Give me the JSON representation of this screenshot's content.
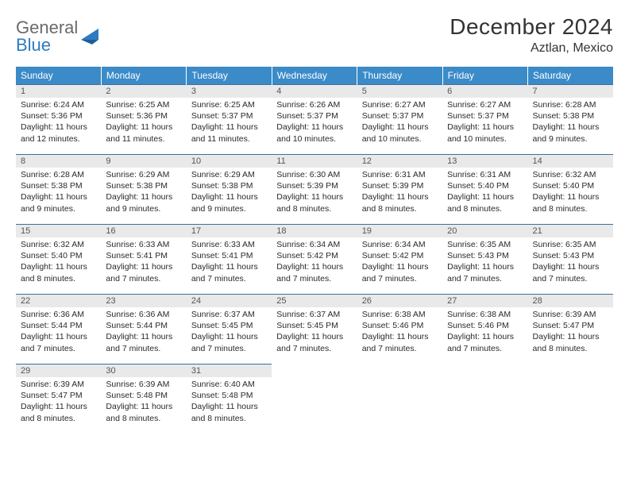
{
  "brand": {
    "part1": "General",
    "part2": "Blue"
  },
  "title": "December 2024",
  "location": "Aztlan, Mexico",
  "colors": {
    "header_bg": "#3b8bc8",
    "header_text": "#ffffff",
    "row_border": "#3b6fa0",
    "daynum_bg": "#e9e9e9",
    "logo_gray": "#6a6a6a",
    "logo_blue": "#2f7bbf"
  },
  "weekdays": [
    "Sunday",
    "Monday",
    "Tuesday",
    "Wednesday",
    "Thursday",
    "Friday",
    "Saturday"
  ],
  "weeks": [
    [
      {
        "n": "1",
        "sunrise": "Sunrise: 6:24 AM",
        "sunset": "Sunset: 5:36 PM",
        "day1": "Daylight: 11 hours",
        "day2": "and 12 minutes."
      },
      {
        "n": "2",
        "sunrise": "Sunrise: 6:25 AM",
        "sunset": "Sunset: 5:36 PM",
        "day1": "Daylight: 11 hours",
        "day2": "and 11 minutes."
      },
      {
        "n": "3",
        "sunrise": "Sunrise: 6:25 AM",
        "sunset": "Sunset: 5:37 PM",
        "day1": "Daylight: 11 hours",
        "day2": "and 11 minutes."
      },
      {
        "n": "4",
        "sunrise": "Sunrise: 6:26 AM",
        "sunset": "Sunset: 5:37 PM",
        "day1": "Daylight: 11 hours",
        "day2": "and 10 minutes."
      },
      {
        "n": "5",
        "sunrise": "Sunrise: 6:27 AM",
        "sunset": "Sunset: 5:37 PM",
        "day1": "Daylight: 11 hours",
        "day2": "and 10 minutes."
      },
      {
        "n": "6",
        "sunrise": "Sunrise: 6:27 AM",
        "sunset": "Sunset: 5:37 PM",
        "day1": "Daylight: 11 hours",
        "day2": "and 10 minutes."
      },
      {
        "n": "7",
        "sunrise": "Sunrise: 6:28 AM",
        "sunset": "Sunset: 5:38 PM",
        "day1": "Daylight: 11 hours",
        "day2": "and 9 minutes."
      }
    ],
    [
      {
        "n": "8",
        "sunrise": "Sunrise: 6:28 AM",
        "sunset": "Sunset: 5:38 PM",
        "day1": "Daylight: 11 hours",
        "day2": "and 9 minutes."
      },
      {
        "n": "9",
        "sunrise": "Sunrise: 6:29 AM",
        "sunset": "Sunset: 5:38 PM",
        "day1": "Daylight: 11 hours",
        "day2": "and 9 minutes."
      },
      {
        "n": "10",
        "sunrise": "Sunrise: 6:29 AM",
        "sunset": "Sunset: 5:38 PM",
        "day1": "Daylight: 11 hours",
        "day2": "and 9 minutes."
      },
      {
        "n": "11",
        "sunrise": "Sunrise: 6:30 AM",
        "sunset": "Sunset: 5:39 PM",
        "day1": "Daylight: 11 hours",
        "day2": "and 8 minutes."
      },
      {
        "n": "12",
        "sunrise": "Sunrise: 6:31 AM",
        "sunset": "Sunset: 5:39 PM",
        "day1": "Daylight: 11 hours",
        "day2": "and 8 minutes."
      },
      {
        "n": "13",
        "sunrise": "Sunrise: 6:31 AM",
        "sunset": "Sunset: 5:40 PM",
        "day1": "Daylight: 11 hours",
        "day2": "and 8 minutes."
      },
      {
        "n": "14",
        "sunrise": "Sunrise: 6:32 AM",
        "sunset": "Sunset: 5:40 PM",
        "day1": "Daylight: 11 hours",
        "day2": "and 8 minutes."
      }
    ],
    [
      {
        "n": "15",
        "sunrise": "Sunrise: 6:32 AM",
        "sunset": "Sunset: 5:40 PM",
        "day1": "Daylight: 11 hours",
        "day2": "and 8 minutes."
      },
      {
        "n": "16",
        "sunrise": "Sunrise: 6:33 AM",
        "sunset": "Sunset: 5:41 PM",
        "day1": "Daylight: 11 hours",
        "day2": "and 7 minutes."
      },
      {
        "n": "17",
        "sunrise": "Sunrise: 6:33 AM",
        "sunset": "Sunset: 5:41 PM",
        "day1": "Daylight: 11 hours",
        "day2": "and 7 minutes."
      },
      {
        "n": "18",
        "sunrise": "Sunrise: 6:34 AM",
        "sunset": "Sunset: 5:42 PM",
        "day1": "Daylight: 11 hours",
        "day2": "and 7 minutes."
      },
      {
        "n": "19",
        "sunrise": "Sunrise: 6:34 AM",
        "sunset": "Sunset: 5:42 PM",
        "day1": "Daylight: 11 hours",
        "day2": "and 7 minutes."
      },
      {
        "n": "20",
        "sunrise": "Sunrise: 6:35 AM",
        "sunset": "Sunset: 5:43 PM",
        "day1": "Daylight: 11 hours",
        "day2": "and 7 minutes."
      },
      {
        "n": "21",
        "sunrise": "Sunrise: 6:35 AM",
        "sunset": "Sunset: 5:43 PM",
        "day1": "Daylight: 11 hours",
        "day2": "and 7 minutes."
      }
    ],
    [
      {
        "n": "22",
        "sunrise": "Sunrise: 6:36 AM",
        "sunset": "Sunset: 5:44 PM",
        "day1": "Daylight: 11 hours",
        "day2": "and 7 minutes."
      },
      {
        "n": "23",
        "sunrise": "Sunrise: 6:36 AM",
        "sunset": "Sunset: 5:44 PM",
        "day1": "Daylight: 11 hours",
        "day2": "and 7 minutes."
      },
      {
        "n": "24",
        "sunrise": "Sunrise: 6:37 AM",
        "sunset": "Sunset: 5:45 PM",
        "day1": "Daylight: 11 hours",
        "day2": "and 7 minutes."
      },
      {
        "n": "25",
        "sunrise": "Sunrise: 6:37 AM",
        "sunset": "Sunset: 5:45 PM",
        "day1": "Daylight: 11 hours",
        "day2": "and 7 minutes."
      },
      {
        "n": "26",
        "sunrise": "Sunrise: 6:38 AM",
        "sunset": "Sunset: 5:46 PM",
        "day1": "Daylight: 11 hours",
        "day2": "and 7 minutes."
      },
      {
        "n": "27",
        "sunrise": "Sunrise: 6:38 AM",
        "sunset": "Sunset: 5:46 PM",
        "day1": "Daylight: 11 hours",
        "day2": "and 7 minutes."
      },
      {
        "n": "28",
        "sunrise": "Sunrise: 6:39 AM",
        "sunset": "Sunset: 5:47 PM",
        "day1": "Daylight: 11 hours",
        "day2": "and 8 minutes."
      }
    ],
    [
      {
        "n": "29",
        "sunrise": "Sunrise: 6:39 AM",
        "sunset": "Sunset: 5:47 PM",
        "day1": "Daylight: 11 hours",
        "day2": "and 8 minutes."
      },
      {
        "n": "30",
        "sunrise": "Sunrise: 6:39 AM",
        "sunset": "Sunset: 5:48 PM",
        "day1": "Daylight: 11 hours",
        "day2": "and 8 minutes."
      },
      {
        "n": "31",
        "sunrise": "Sunrise: 6:40 AM",
        "sunset": "Sunset: 5:48 PM",
        "day1": "Daylight: 11 hours",
        "day2": "and 8 minutes."
      },
      null,
      null,
      null,
      null
    ]
  ]
}
